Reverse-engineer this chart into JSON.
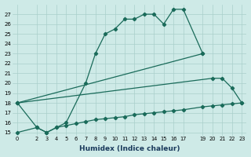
{
  "xlabel": "Humidex (Indice chaleur)",
  "bg_color": "#ceeae7",
  "grid_color": "#aacfcb",
  "line_color": "#1a6b5a",
  "xlim": [
    -0.5,
    23.5
  ],
  "ylim": [
    14.7,
    28.0
  ],
  "yticks": [
    15,
    16,
    17,
    18,
    19,
    20,
    21,
    22,
    23,
    24,
    25,
    26,
    27
  ],
  "xticks": [
    0,
    2,
    3,
    4,
    5,
    6,
    7,
    8,
    9,
    10,
    11,
    12,
    13,
    14,
    15,
    16,
    17,
    19,
    20,
    21,
    22,
    23
  ],
  "line1_x": [
    0,
    2,
    3,
    4,
    5,
    7,
    8,
    9,
    10,
    11,
    12,
    13,
    14,
    15,
    16,
    17,
    19
  ],
  "line1_y": [
    18.0,
    15.5,
    15.0,
    15.5,
    16.0,
    20.0,
    23.0,
    25.0,
    25.5,
    26.5,
    26.5,
    27.0,
    27.0,
    26.0,
    27.5,
    27.5,
    23.0
  ],
  "line2_x": [
    0,
    19
  ],
  "line2_y": [
    18.0,
    23.0
  ],
  "line3_x": [
    0,
    20,
    21,
    22,
    23
  ],
  "line3_y": [
    18.0,
    20.5,
    20.5,
    19.5,
    18.0
  ],
  "line4_x": [
    0,
    2,
    3,
    4,
    5,
    6,
    7,
    8,
    9,
    10,
    11,
    12,
    13,
    14,
    15,
    16,
    17,
    19,
    20,
    21,
    22,
    23
  ],
  "line4_y": [
    15.0,
    15.5,
    15.0,
    15.5,
    15.7,
    15.9,
    16.1,
    16.3,
    16.4,
    16.5,
    16.6,
    16.8,
    16.9,
    17.0,
    17.1,
    17.2,
    17.3,
    17.6,
    17.7,
    17.8,
    17.9,
    18.0
  ]
}
